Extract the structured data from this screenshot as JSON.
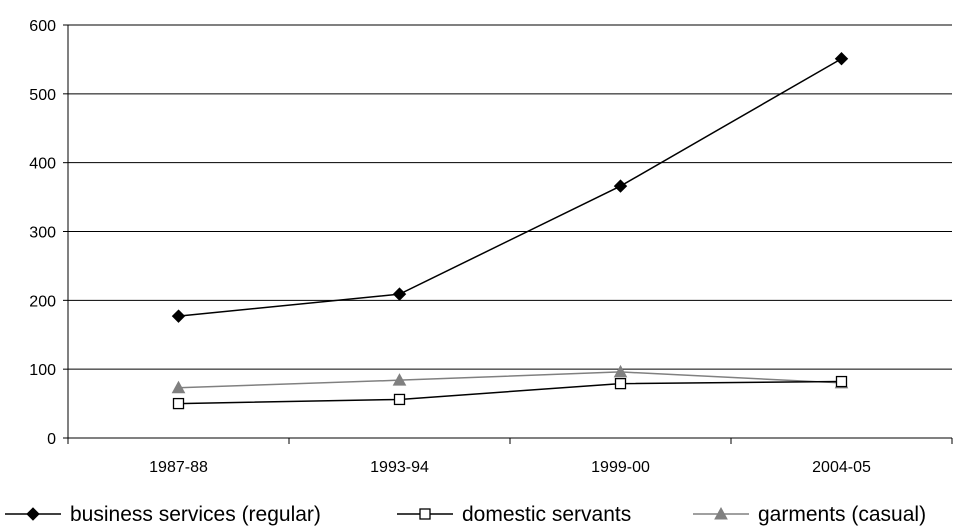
{
  "chart_data": {
    "type": "line",
    "categories": [
      "1987-88",
      "1993-94",
      "1999-00",
      "2004-05"
    ],
    "ylim": [
      0,
      600
    ],
    "yticks": [
      0,
      100,
      200,
      300,
      400,
      500,
      600
    ],
    "grid": true,
    "legend_position": "bottom",
    "series": [
      {
        "name": "business services (regular)",
        "values": [
          177,
          209,
          366,
          551
        ],
        "color": "#000000",
        "marker": "diamond-filled"
      },
      {
        "name": "domestic servants",
        "values": [
          50,
          56,
          79,
          82
        ],
        "color": "#000000",
        "marker": "square-open"
      },
      {
        "name": "garments (casual)",
        "values": [
          73,
          84,
          96,
          80
        ],
        "color": "#808080",
        "marker": "triangle-filled"
      }
    ]
  }
}
